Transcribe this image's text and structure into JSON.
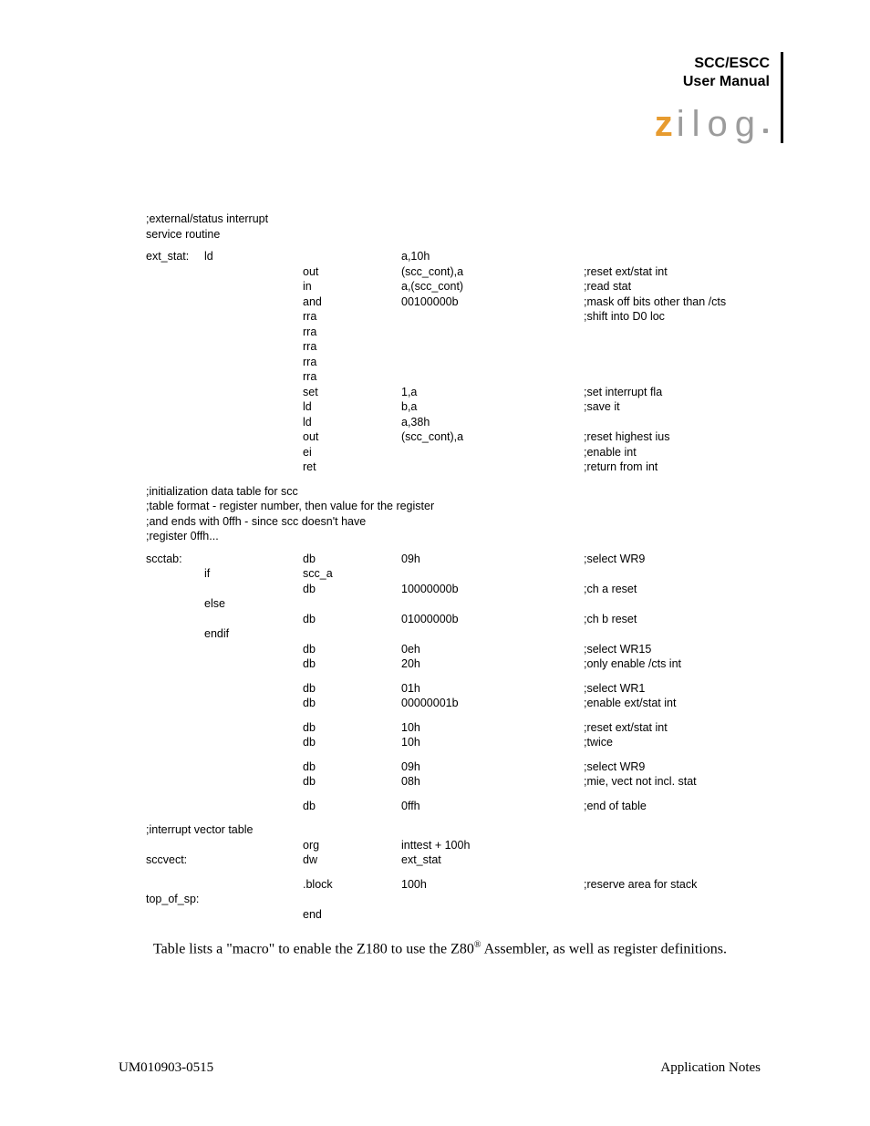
{
  "header": {
    "title_line1": "SCC/ESCC",
    "title_line2": "User Manual",
    "logo_z": "z",
    "logo_rest": "ilog"
  },
  "intro_block1": [
    ";external/status interrupt",
    "service routine"
  ],
  "code1": [
    {
      "label": "ext_stat:",
      "cond": "ld",
      "mnem": "",
      "ops": "a,10h",
      "cmt": ""
    },
    {
      "label": "",
      "cond": "",
      "mnem": "out",
      "ops": "(scc_cont),a",
      "cmt": ";reset ext/stat int"
    },
    {
      "label": "",
      "cond": "",
      "mnem": "in",
      "ops": "a,(scc_cont)",
      "cmt": ";read stat"
    },
    {
      "label": "",
      "cond": "",
      "mnem": "and",
      "ops": "00100000b",
      "cmt": ";mask off bits other than /cts"
    },
    {
      "label": "",
      "cond": "",
      "mnem": "rra",
      "ops": "",
      "cmt": ";shift into D0 loc"
    },
    {
      "label": "",
      "cond": "",
      "mnem": "rra",
      "ops": "",
      "cmt": ""
    },
    {
      "label": "",
      "cond": "",
      "mnem": "rra",
      "ops": "",
      "cmt": ""
    },
    {
      "label": "",
      "cond": "",
      "mnem": "rra",
      "ops": "",
      "cmt": ""
    },
    {
      "label": "",
      "cond": "",
      "mnem": "rra",
      "ops": "",
      "cmt": ""
    },
    {
      "label": "",
      "cond": "",
      "mnem": "set",
      "ops": "1,a",
      "cmt": ";set interrupt fla"
    },
    {
      "label": "",
      "cond": "",
      "mnem": "ld",
      "ops": "b,a",
      "cmt": ";save it"
    },
    {
      "label": "",
      "cond": "",
      "mnem": "ld",
      "ops": "a,38h",
      "cmt": ""
    },
    {
      "label": "",
      "cond": "",
      "mnem": "out",
      "ops": "(scc_cont),a",
      "cmt": ";reset highest ius"
    },
    {
      "label": "",
      "cond": "",
      "mnem": "ei",
      "ops": "",
      "cmt": ";enable int"
    },
    {
      "label": "",
      "cond": "",
      "mnem": "ret",
      "ops": "",
      "cmt": ";return from int"
    }
  ],
  "intro_block2": [
    ";initialization data table for scc",
    ";table format - register number, then value for the register",
    ";and ends with 0ffh - since scc doesn't have",
    ";register 0ffh..."
  ],
  "code2": [
    {
      "label": "scctab:",
      "cond": "",
      "mnem": "db",
      "ops": "09h",
      "cmt": ";select WR9"
    },
    {
      "label": "",
      "cond": "if",
      "mnem": "scc_a",
      "ops": "",
      "cmt": ""
    },
    {
      "label": "",
      "cond": "",
      "mnem": "db",
      "ops": "10000000b",
      "cmt": ";ch a reset"
    },
    {
      "label": "",
      "cond": "else",
      "mnem": "",
      "ops": "",
      "cmt": ""
    },
    {
      "label": "",
      "cond": "",
      "mnem": "db",
      "ops": "01000000b",
      "cmt": ";ch b reset"
    },
    {
      "label": "",
      "cond": "endif",
      "mnem": "",
      "ops": "",
      "cmt": ""
    },
    {
      "label": "",
      "cond": "",
      "mnem": "db",
      "ops": "0eh",
      "cmt": ";select WR15"
    },
    {
      "label": "",
      "cond": "",
      "mnem": "db",
      "ops": "20h",
      "cmt": ";only enable /cts int"
    }
  ],
  "code2b": [
    {
      "label": "",
      "cond": "",
      "mnem": "db",
      "ops": "01h",
      "cmt": ";select WR1"
    },
    {
      "label": "",
      "cond": "",
      "mnem": "db",
      "ops": "00000001b",
      "cmt": ";enable ext/stat int"
    }
  ],
  "code2c": [
    {
      "label": "",
      "cond": "",
      "mnem": "db",
      "ops": "10h",
      "cmt": ";reset ext/stat int"
    },
    {
      "label": "",
      "cond": "",
      "mnem": "db",
      "ops": "10h",
      "cmt": ";twice"
    }
  ],
  "code2d": [
    {
      "label": "",
      "cond": "",
      "mnem": "db",
      "ops": "09h",
      "cmt": ";select WR9"
    },
    {
      "label": "",
      "cond": "",
      "mnem": "db",
      "ops": "08h",
      "cmt": ";mie, vect not incl. stat"
    }
  ],
  "code2e": [
    {
      "label": "",
      "cond": "",
      "mnem": "db",
      "ops": "0ffh",
      "cmt": ";end of table"
    }
  ],
  "intro_block3": [
    ";interrupt vector table"
  ],
  "code3": [
    {
      "label": "",
      "cond": "",
      "mnem": "org",
      "ops": "inttest + 100h",
      "cmt": ""
    },
    {
      "label": "sccvect:",
      "cond": "",
      "mnem": "dw",
      "ops": "ext_stat",
      "cmt": ""
    }
  ],
  "code3b": [
    {
      "label": "",
      "cond": "",
      "mnem": ".block",
      "ops": "100h",
      "cmt": ";reserve area for stack"
    }
  ],
  "code3c": [
    {
      "label": "top_of_sp:",
      "cond": "",
      "mnem": "",
      "ops": "",
      "cmt": ""
    },
    {
      "label": "",
      "cond": "",
      "mnem": "end",
      "ops": "",
      "cmt": ""
    }
  ],
  "body_text_pre": "Table  lists a \"macro\" to enable the Z180 to use the Z80",
  "body_text_sup": "®",
  "body_text_post": " Assembler, as well as register definitions.",
  "footer": {
    "left": "UM010903-0515",
    "right": "Application Notes"
  }
}
